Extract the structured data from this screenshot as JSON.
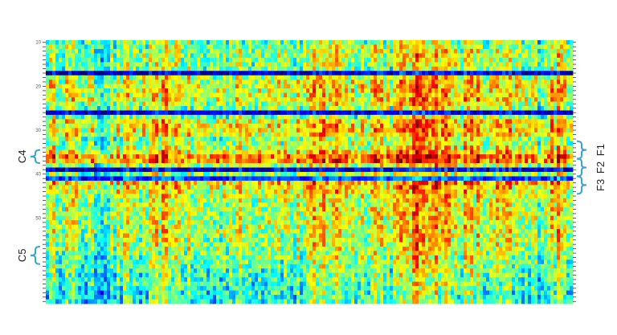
{
  "chart_data": {
    "type": "heatmap",
    "title": "",
    "xlabel": "",
    "ylabel": "",
    "y_range": [
      10,
      69
    ],
    "y_ticks": [
      10,
      20,
      30,
      40,
      50
    ],
    "colormap": "jet",
    "colors": {
      "low": "#1f3fbf",
      "mid": "#f5e32a",
      "high": "#7a0a0a",
      "bracket": "#3aa6d0"
    },
    "row_intensity_profile": [
      [
        10,
        0.45
      ],
      [
        11,
        0.5
      ],
      [
        12,
        0.5
      ],
      [
        13,
        0.55
      ],
      [
        14,
        0.5
      ],
      [
        15,
        0.5
      ],
      [
        16,
        0.45
      ],
      [
        17,
        0.1
      ],
      [
        18,
        0.6
      ],
      [
        19,
        0.65
      ],
      [
        20,
        0.7
      ],
      [
        21,
        0.7
      ],
      [
        22,
        0.65
      ],
      [
        23,
        0.7
      ],
      [
        24,
        0.6
      ],
      [
        25,
        0.5
      ],
      [
        26,
        0.1
      ],
      [
        27,
        0.45
      ],
      [
        28,
        0.7
      ],
      [
        29,
        0.75
      ],
      [
        30,
        0.75
      ],
      [
        31,
        0.7
      ],
      [
        32,
        0.55
      ],
      [
        33,
        0.55
      ],
      [
        34,
        0.6
      ],
      [
        35,
        0.75
      ],
      [
        36,
        0.98
      ],
      [
        37,
        0.95
      ],
      [
        38,
        0.55
      ],
      [
        39,
        0.12
      ],
      [
        40,
        0.5
      ],
      [
        41,
        0.2
      ],
      [
        42,
        0.8
      ],
      [
        43,
        0.75
      ],
      [
        44,
        0.7
      ],
      [
        45,
        0.65
      ],
      [
        46,
        0.6
      ],
      [
        47,
        0.6
      ],
      [
        48,
        0.6
      ],
      [
        49,
        0.62
      ],
      [
        50,
        0.6
      ],
      [
        51,
        0.6
      ],
      [
        52,
        0.58
      ],
      [
        53,
        0.6
      ],
      [
        54,
        0.58
      ],
      [
        55,
        0.55
      ],
      [
        56,
        0.55
      ],
      [
        57,
        0.55
      ],
      [
        58,
        0.5
      ],
      [
        59,
        0.5
      ],
      [
        60,
        0.45
      ],
      [
        61,
        0.42
      ],
      [
        62,
        0.4
      ],
      [
        63,
        0.38
      ],
      [
        64,
        0.35
      ],
      [
        65,
        0.35
      ],
      [
        66,
        0.32
      ],
      [
        67,
        0.3
      ],
      [
        68,
        0.3
      ],
      [
        69,
        0.3
      ]
    ],
    "column_intensity_profile": [
      0.55,
      0.6,
      0.5,
      0.4,
      0.45,
      0.6,
      0.45,
      0.7,
      0.65,
      0.5,
      0.45,
      0.6,
      0.55,
      0.6,
      0.65,
      0.5,
      0.6,
      0.75,
      0.7,
      0.55,
      0.75,
      0.6,
      0.8,
      0.95,
      0.85,
      0.65,
      0.7,
      0.55,
      0.65,
      0.5,
      0.5,
      0.75,
      0.6
    ],
    "annotations": {
      "left": [
        {
          "label": "C4",
          "rows": [
            35,
            37
          ]
        },
        {
          "label": "C5",
          "rows": [
            57,
            60
          ]
        }
      ],
      "right": [
        {
          "label": "F1",
          "rows": [
            33,
            36
          ]
        },
        {
          "label": "F2",
          "rows": [
            37,
            40
          ]
        },
        {
          "label": "F3",
          "rows": [
            41,
            44
          ]
        }
      ]
    }
  }
}
